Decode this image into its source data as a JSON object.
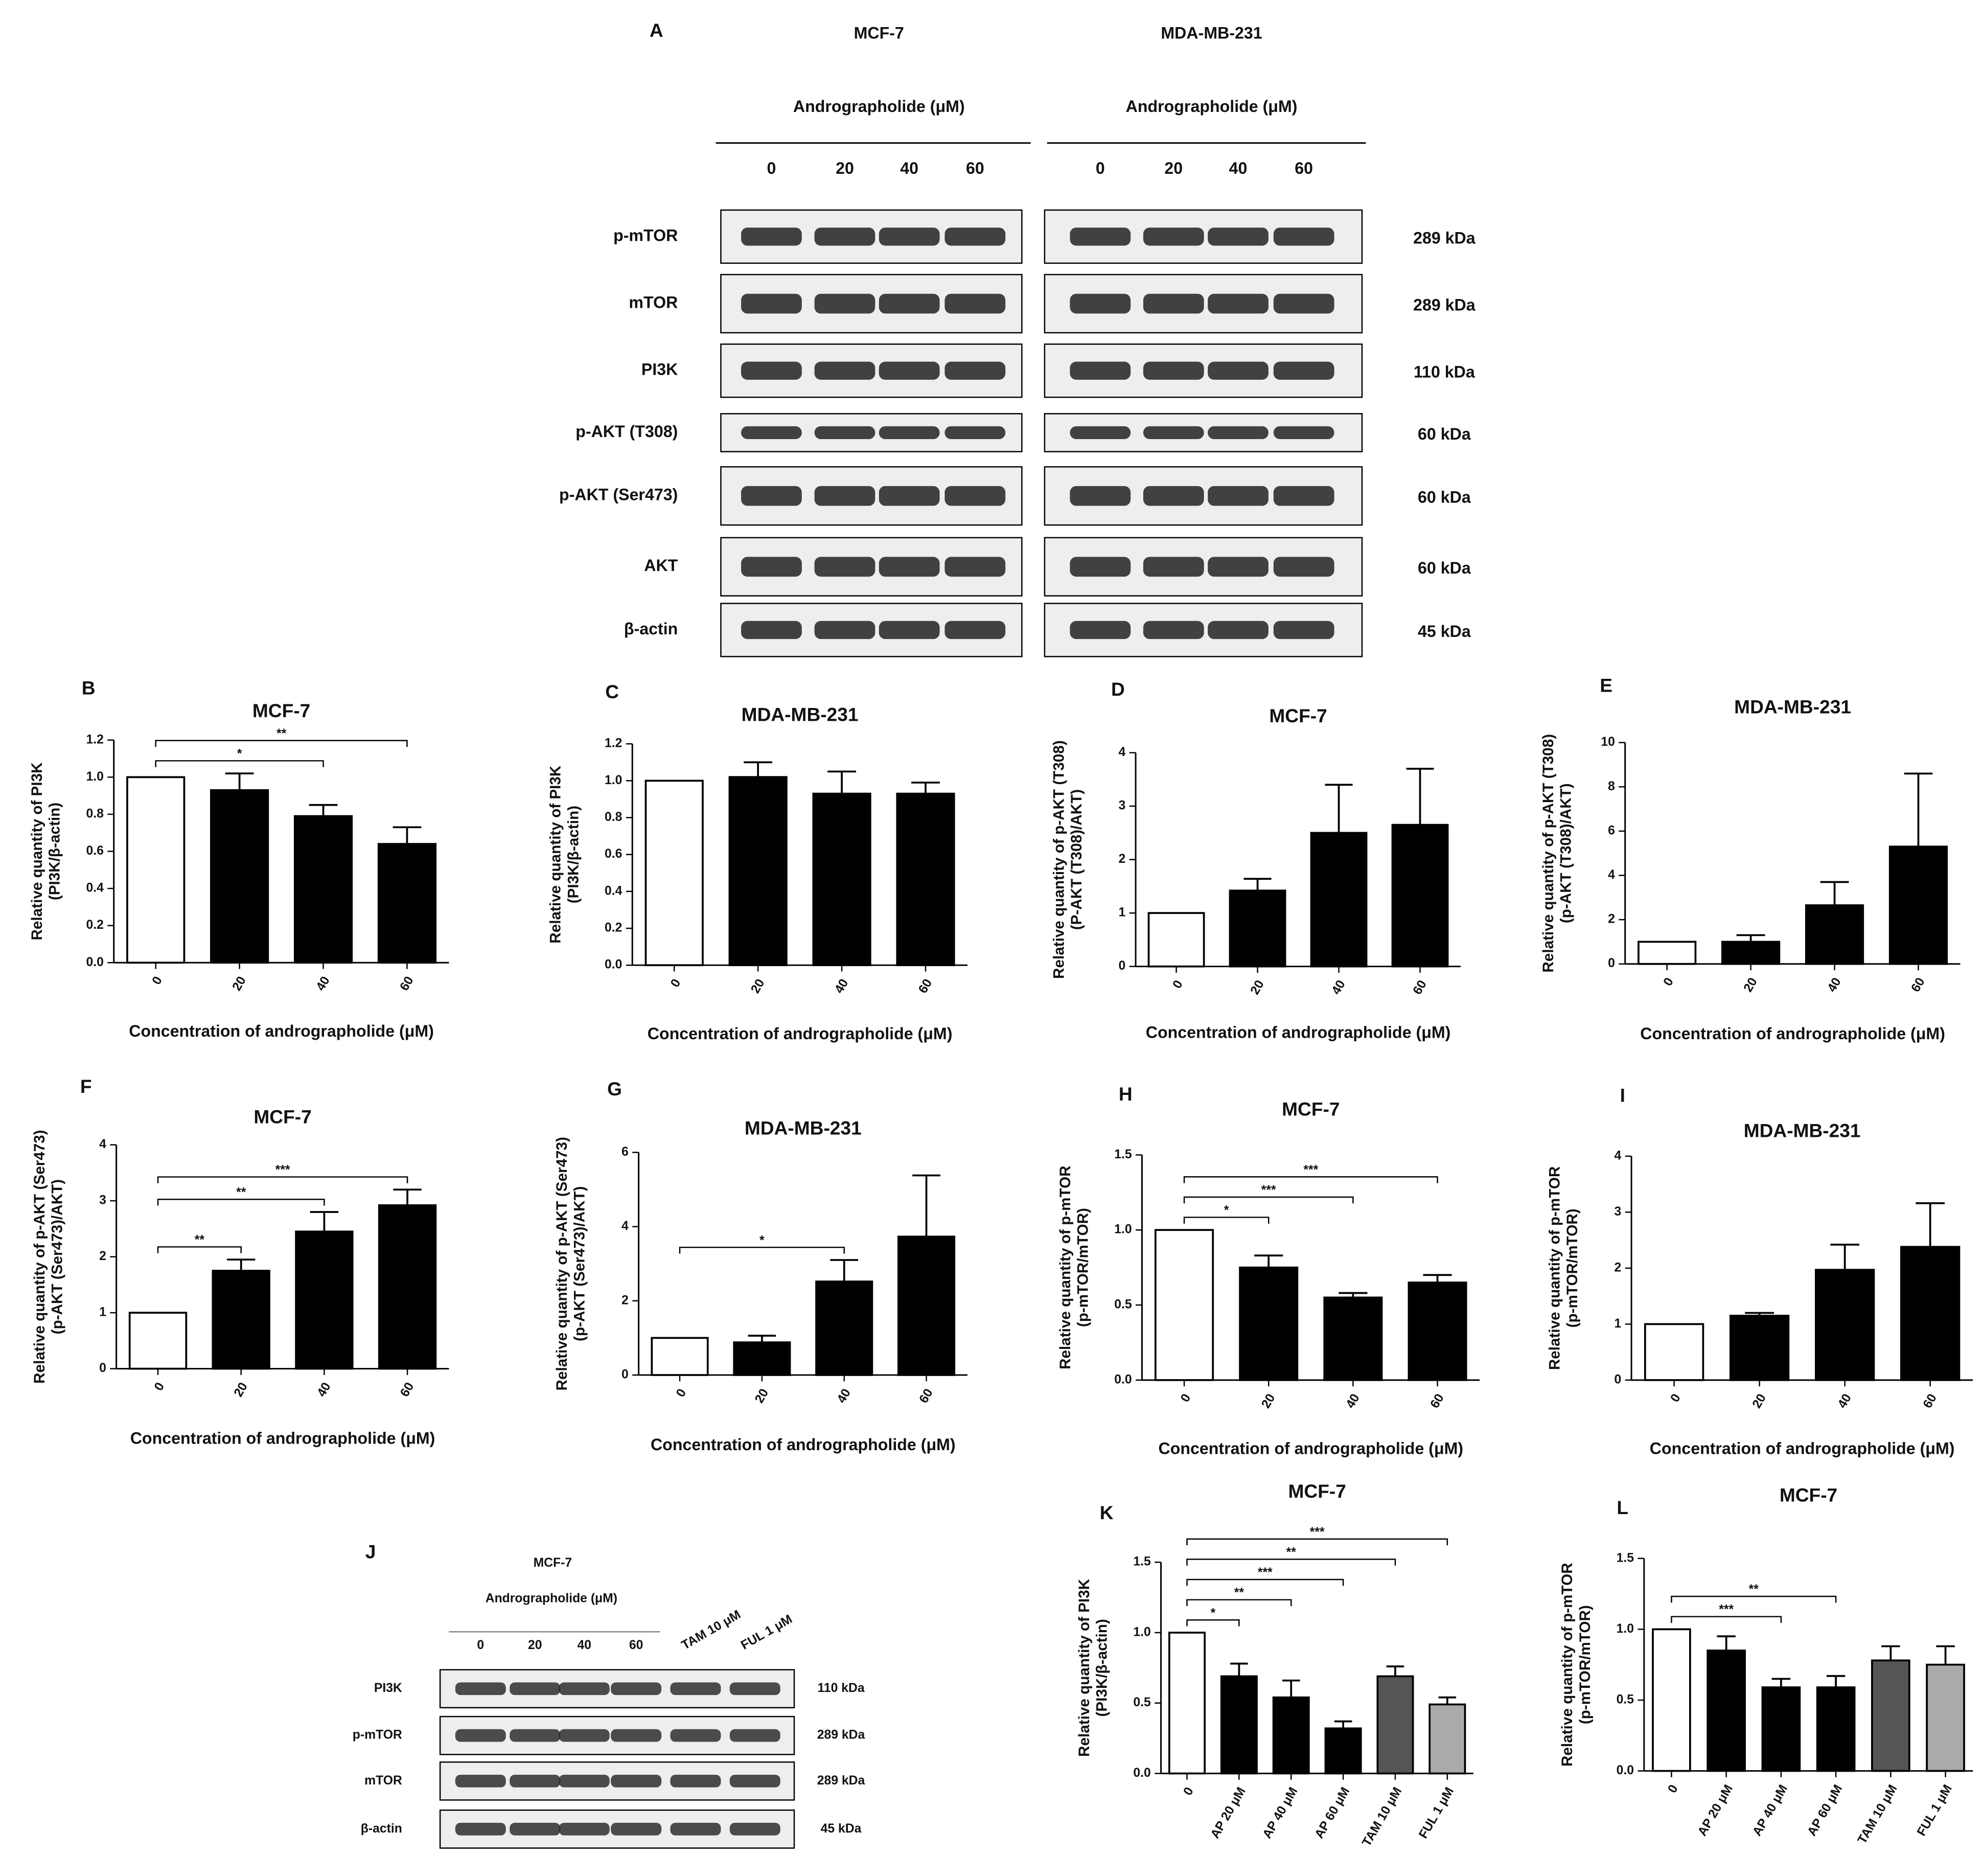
{
  "chart_data": [
    {
      "type": "bar",
      "panel": "B",
      "title": "MCF-7",
      "ylabel": [
        "Relative quantity of PI3K",
        "(PI3K/β-actin)"
      ],
      "xlabel": "Concentration of andrographolide (μM)",
      "categories": [
        "0",
        "20",
        "40",
        "60"
      ],
      "values": [
        1.0,
        0.93,
        0.79,
        0.64
      ],
      "errors": [
        0,
        0.09,
        0.06,
        0.09
      ],
      "colors": [
        "#ffffff",
        "#000000",
        "#000000",
        "#000000"
      ],
      "ylim": [
        0,
        1.2
      ],
      "yticks": [
        {
          "value": 0,
          "label": "0.0"
        },
        {
          "value": 0.2,
          "label": "0.2"
        },
        {
          "value": 0.4,
          "label": "0.4"
        },
        {
          "value": 0.6,
          "label": "0.6"
        },
        {
          "value": 0.8,
          "label": "0.8"
        },
        {
          "value": 1,
          "label": "1.0"
        },
        {
          "value": 1.2,
          "label": "1.2"
        }
      ],
      "significance": [
        {
          "from": 0,
          "to": 2,
          "label": "*"
        },
        {
          "from": 0,
          "to": 3,
          "label": "**"
        }
      ]
    },
    {
      "type": "bar",
      "panel": "C",
      "title": "MDA-MB-231",
      "ylabel": [
        "Relative quantity of PI3K",
        "(PI3K/β-actin)"
      ],
      "xlabel": "Concentration of andrographolide (μM)",
      "categories": [
        "0",
        "20",
        "40",
        "60"
      ],
      "values": [
        1.0,
        1.02,
        0.93,
        0.93
      ],
      "errors": [
        0,
        0.08,
        0.12,
        0.06
      ],
      "colors": [
        "#ffffff",
        "#000000",
        "#000000",
        "#000000"
      ],
      "ylim": [
        0,
        1.2
      ],
      "yticks": [
        {
          "value": 0,
          "label": "0.0"
        },
        {
          "value": 0.2,
          "label": "0.2"
        },
        {
          "value": 0.4,
          "label": "0.4"
        },
        {
          "value": 0.6,
          "label": "0.6"
        },
        {
          "value": 0.8,
          "label": "0.8"
        },
        {
          "value": 1,
          "label": "1.0"
        },
        {
          "value": 1.2,
          "label": "1.2"
        }
      ],
      "significance": []
    },
    {
      "type": "bar",
      "panel": "D",
      "title": "MCF-7",
      "ylabel": [
        "Relative quantity of p-AKT (T308)",
        "(P-AKT (T308)/AKT)"
      ],
      "xlabel": "Concentration of andrographolide (μM)",
      "categories": [
        "0",
        "20",
        "40",
        "60"
      ],
      "values": [
        1.0,
        1.42,
        2.5,
        2.65
      ],
      "errors": [
        0,
        0.22,
        0.9,
        1.05
      ],
      "colors": [
        "#ffffff",
        "#000000",
        "#000000",
        "#000000"
      ],
      "ylim": [
        0,
        4
      ],
      "yticks": [
        0,
        1,
        2,
        3,
        4
      ],
      "significance": []
    },
    {
      "type": "bar",
      "panel": "E",
      "title": "MDA-MB-231",
      "ylabel": [
        "Relative quantity of p-AKT (T308)",
        "(p-AKT (T308)/AKT)"
      ],
      "xlabel": "Concentration of andrographolide (μM)",
      "categories": [
        "0",
        "20",
        "40",
        "60"
      ],
      "values": [
        1.0,
        1.0,
        2.65,
        5.3
      ],
      "errors": [
        0,
        0.3,
        1.05,
        3.3
      ],
      "colors": [
        "#ffffff",
        "#000000",
        "#000000",
        "#000000"
      ],
      "ylim": [
        0,
        10
      ],
      "yticks": [
        0,
        2,
        4,
        6,
        8,
        10
      ],
      "significance": []
    },
    {
      "type": "bar",
      "panel": "F",
      "title": "MCF-7",
      "ylabel": [
        "Relative quantity of p-AKT (Ser473)",
        "(p-AKT (Ser473)/AKT)"
      ],
      "xlabel": "Concentration of andrographolide (μM)",
      "categories": [
        "0",
        "20",
        "40",
        "60"
      ],
      "values": [
        1.0,
        1.75,
        2.45,
        2.92
      ],
      "errors": [
        0,
        0.2,
        0.35,
        0.28
      ],
      "colors": [
        "#ffffff",
        "#000000",
        "#000000",
        "#000000"
      ],
      "ylim": [
        0,
        4
      ],
      "yticks": [
        0,
        1,
        2,
        3,
        4
      ],
      "significance": [
        {
          "from": 0,
          "to": 1,
          "label": "**"
        },
        {
          "from": 0,
          "to": 2,
          "label": "**"
        },
        {
          "from": 0,
          "to": 3,
          "label": "***"
        }
      ]
    },
    {
      "type": "bar",
      "panel": "G",
      "title": "MDA-MB-231",
      "ylabel": [
        "Relative quantity of p-AKT (Ser473)",
        "(p-AKT (Ser473)/AKT)"
      ],
      "xlabel": "Concentration of andrographolide (μM)",
      "categories": [
        "0",
        "20",
        "40",
        "60"
      ],
      "values": [
        1.0,
        0.88,
        2.52,
        3.73
      ],
      "errors": [
        0,
        0.18,
        0.58,
        1.65
      ],
      "colors": [
        "#ffffff",
        "#000000",
        "#000000",
        "#000000"
      ],
      "ylim": [
        0,
        6
      ],
      "yticks": [
        0,
        2,
        4,
        6
      ],
      "significance": [
        {
          "from": 0,
          "to": 2,
          "label": "*"
        }
      ]
    },
    {
      "type": "bar",
      "panel": "H",
      "title": "MCF-7",
      "ylabel": [
        "Relative quantity of p-mTOR",
        "(p-mTOR/mTOR)"
      ],
      "xlabel": "Concentration of andrographolide (μM)",
      "categories": [
        "0",
        "20",
        "40",
        "60"
      ],
      "values": [
        1.0,
        0.75,
        0.55,
        0.65
      ],
      "errors": [
        0,
        0.08,
        0.03,
        0.05
      ],
      "colors": [
        "#ffffff",
        "#000000",
        "#000000",
        "#000000"
      ],
      "ylim": [
        0,
        1.5
      ],
      "yticks": [
        {
          "value": 0,
          "label": "0.0"
        },
        {
          "value": 0.5,
          "label": "0.5"
        },
        {
          "value": 1,
          "label": "1.0"
        },
        {
          "value": 1.5,
          "label": "1.5"
        }
      ],
      "significance": [
        {
          "from": 0,
          "to": 1,
          "label": "*"
        },
        {
          "from": 0,
          "to": 2,
          "label": "***"
        },
        {
          "from": 0,
          "to": 3,
          "label": "***"
        }
      ]
    },
    {
      "type": "bar",
      "panel": "I",
      "title": "MDA-MB-231",
      "ylabel": [
        "Relative quantity of p-mTOR",
        "(p-mTOR/mTOR)"
      ],
      "xlabel": "Concentration of andrographolide (μM)",
      "categories": [
        "0",
        "20",
        "40",
        "60"
      ],
      "values": [
        1.0,
        1.15,
        1.97,
        2.38
      ],
      "errors": [
        0,
        0.05,
        0.45,
        0.78
      ],
      "colors": [
        "#ffffff",
        "#000000",
        "#000000",
        "#000000"
      ],
      "ylim": [
        0,
        4
      ],
      "yticks": [
        0,
        1,
        2,
        3,
        4
      ],
      "significance": []
    },
    {
      "type": "bar",
      "panel": "K",
      "title": "MCF-7",
      "ylabel": [
        "Relative quantity of PI3K",
        "(PI3K/β-actin)"
      ],
      "categories": [
        "0",
        "AP 20 μM",
        "AP 40 μM",
        "AP 60 μM",
        "TAM 10 μM",
        "FUL 1 μM"
      ],
      "values": [
        1.0,
        0.69,
        0.54,
        0.32,
        0.69,
        0.49
      ],
      "errors": [
        0,
        0.09,
        0.12,
        0.05,
        0.07,
        0.05
      ],
      "colors": [
        "#ffffff",
        "#000000",
        "#000000",
        "#000000",
        "#555555",
        "#aaaaaa"
      ],
      "ylim": [
        0,
        1.5
      ],
      "yticks": [
        {
          "value": 0,
          "label": "0.0"
        },
        {
          "value": 0.5,
          "label": "0.5"
        },
        {
          "value": 1,
          "label": "1.0"
        },
        {
          "value": 1.5,
          "label": "1.5"
        }
      ],
      "significance": [
        {
          "from": 0,
          "to": 1,
          "label": "*"
        },
        {
          "from": 0,
          "to": 2,
          "label": "**"
        },
        {
          "from": 0,
          "to": 3,
          "label": "***"
        },
        {
          "from": 0,
          "to": 4,
          "label": "**"
        },
        {
          "from": 0,
          "to": 5,
          "label": "***"
        }
      ]
    },
    {
      "type": "bar",
      "panel": "L",
      "title": "MCF-7",
      "ylabel": [
        "Relative quantity of p-mTOR",
        "(p-mTOR/mTOR)"
      ],
      "categories": [
        "0",
        "AP 20 μM",
        "AP 40 μM",
        "AP 60 μM",
        "TAM 10 μM",
        "FUL 1 μM"
      ],
      "values": [
        1.0,
        0.85,
        0.59,
        0.59,
        0.78,
        0.75
      ],
      "errors": [
        0,
        0.1,
        0.06,
        0.08,
        0.1,
        0.13
      ],
      "colors": [
        "#ffffff",
        "#000000",
        "#000000",
        "#000000",
        "#555555",
        "#aaaaaa"
      ],
      "ylim": [
        0,
        1.5
      ],
      "yticks": [
        {
          "value": 0,
          "label": "0.0"
        },
        {
          "value": 0.5,
          "label": "0.5"
        },
        {
          "value": 1,
          "label": "1.0"
        },
        {
          "value": 1.5,
          "label": "1.5"
        }
      ],
      "significance": [
        {
          "from": 0,
          "to": 2,
          "label": "***"
        },
        {
          "from": 0,
          "to": 3,
          "label": "**"
        }
      ]
    }
  ],
  "blot_a": {
    "panel": "A",
    "cell_lines": [
      "MCF-7",
      "MDA-MB-231"
    ],
    "treatment": "Andrographolide (μM)",
    "doses": [
      "0",
      "20",
      "40",
      "60"
    ],
    "proteins": [
      "p-mTOR",
      "mTOR",
      "PI3K",
      "p-AKT (T308)",
      "p-AKT (Ser473)",
      "AKT",
      "β-actin"
    ],
    "sizes": [
      "289 kDa",
      "289 kDa",
      "110 kDa",
      "60 kDa",
      "60 kDa",
      "60 kDa",
      "45 kDa"
    ]
  },
  "blot_j": {
    "panel": "J",
    "cell_line": "MCF-7",
    "treatment": "Andrographolide (μM)",
    "doses": [
      "0",
      "20",
      "40",
      "60"
    ],
    "controls": [
      "TAM 10 μM",
      "FUL 1 μM"
    ],
    "proteins": [
      "PI3K",
      "p-mTOR",
      "mTOR",
      "β-actin"
    ],
    "sizes": [
      "110 kDa",
      "289 kDa",
      "289 kDa",
      "45 kDa"
    ]
  }
}
